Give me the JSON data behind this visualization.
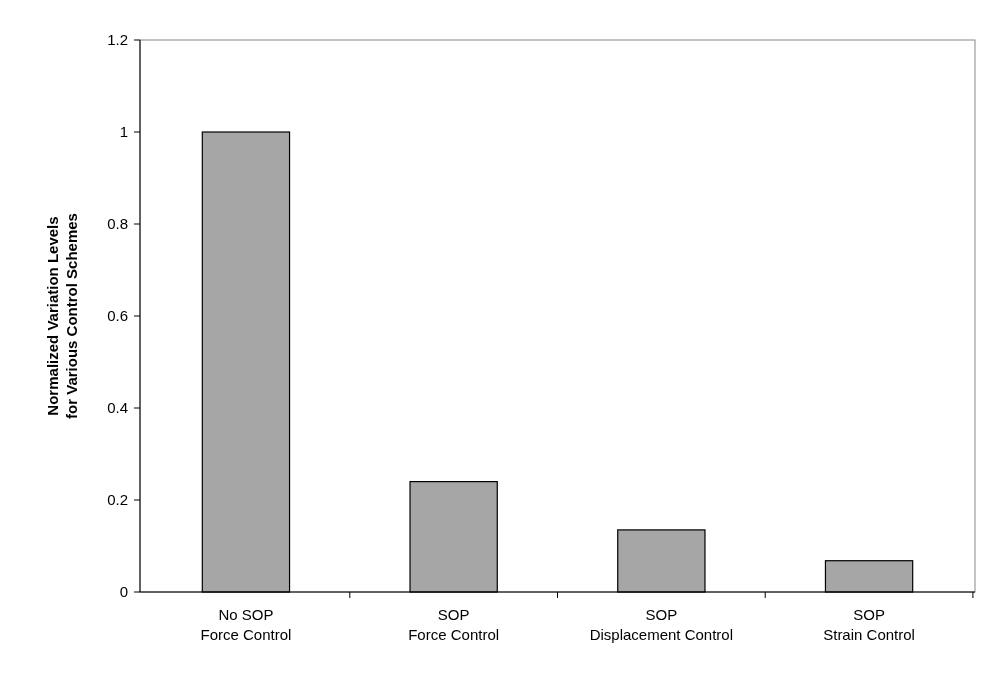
{
  "chart_data": {
    "type": "bar",
    "ylabel": "Normalized Variation Levels\nfor Various Control Schemes",
    "categories": [
      "No SOP\nForce Control",
      "SOP\nForce Control",
      "SOP\nDisplacement Control",
      "SOP\nStrain Control"
    ],
    "values": [
      1.0,
      0.24,
      0.135,
      0.068
    ],
    "color": "#a6a6a6",
    "ylim": [
      0,
      1.2
    ],
    "yticks": [
      0,
      0.2,
      0.4,
      0.6,
      0.8,
      1,
      1.2
    ],
    "grid": false
  }
}
